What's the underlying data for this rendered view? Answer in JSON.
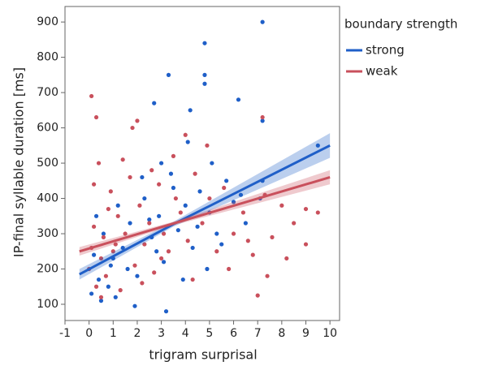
{
  "chart_data": {
    "type": "scatter",
    "x_label": "trigram surprisal",
    "y_label": "IP-final syllable duration [ms]",
    "legend_title": "boundary strength",
    "legend_position": "outside-right",
    "xlim": [
      -1,
      10.4
    ],
    "ylim": [
      54,
      944
    ],
    "xticks": [
      -1,
      0,
      1,
      2,
      3,
      4,
      5,
      6,
      7,
      8,
      9,
      10
    ],
    "yticks": [
      100,
      200,
      300,
      400,
      500,
      600,
      700,
      800,
      900
    ],
    "series": [
      {
        "name": "strong",
        "color": "#1f5fc8",
        "x": [
          7.2,
          4.8,
          3.3,
          4.8,
          4.8,
          2.7,
          4.2,
          6.2,
          7.2,
          9.5,
          7.2,
          3.2,
          1.9,
          0.1,
          0.2,
          0.4,
          0.6,
          0.9,
          1.1,
          1.4,
          1.7,
          2.0,
          2.3,
          2.6,
          2.9,
          3.1,
          3.4,
          3.7,
          4.0,
          4.3,
          4.6,
          5.0,
          5.3,
          5.7,
          6.0,
          6.5,
          7.1,
          0.3,
          0.8,
          1.2,
          1.6,
          2.2,
          2.8,
          3.5,
          3.9,
          4.5,
          5.1,
          5.5,
          6.3,
          0.5,
          1.0,
          2.5,
          3.0,
          4.1,
          4.9
        ],
        "y": [
          900,
          840,
          750,
          750,
          725,
          670,
          650,
          680,
          620,
          550,
          450,
          80,
          95,
          130,
          240,
          170,
          300,
          210,
          120,
          260,
          330,
          180,
          400,
          290,
          350,
          220,
          470,
          310,
          380,
          260,
          420,
          360,
          300,
          450,
          390,
          330,
          400,
          350,
          150,
          380,
          200,
          460,
          250,
          430,
          170,
          320,
          500,
          270,
          410,
          110,
          230,
          340,
          500,
          560,
          200
        ]
      },
      {
        "name": "weak",
        "color": "#c9505c",
        "x": [
          0.1,
          0.3,
          7.2,
          2.0,
          1.8,
          9.0,
          9.0,
          9.5,
          7.0,
          4.0,
          0.0,
          0.1,
          0.2,
          0.3,
          0.4,
          0.5,
          0.6,
          0.7,
          0.9,
          1.0,
          1.2,
          1.3,
          1.5,
          1.7,
          1.9,
          2.1,
          2.3,
          2.5,
          2.7,
          2.9,
          3.1,
          3.3,
          3.5,
          3.8,
          4.1,
          4.4,
          4.7,
          5.0,
          5.3,
          5.6,
          6.0,
          6.4,
          6.8,
          7.3,
          7.6,
          8.0,
          8.5,
          0.2,
          0.5,
          0.8,
          1.1,
          1.4,
          2.2,
          2.6,
          3.0,
          3.6,
          4.3,
          4.9,
          5.8,
          6.6,
          7.4,
          8.2
        ],
        "y": [
          690,
          630,
          630,
          620,
          600,
          270,
          370,
          360,
          125,
          580,
          200,
          260,
          320,
          150,
          500,
          230,
          290,
          180,
          420,
          250,
          350,
          140,
          300,
          460,
          210,
          380,
          270,
          330,
          190,
          440,
          300,
          250,
          520,
          360,
          280,
          470,
          330,
          400,
          250,
          430,
          300,
          360,
          240,
          410,
          290,
          380,
          330,
          440,
          120,
          370,
          270,
          510,
          160,
          480,
          230,
          400,
          170,
          550,
          200,
          280,
          180,
          230
        ]
      }
    ],
    "fits": [
      {
        "x": [
          -0.4,
          3.5,
          10
        ],
        "y": [
          185,
          327,
          550
        ],
        "ci_lower": [
          170,
          320,
          515
        ],
        "ci_upper": [
          200,
          334,
          585
        ]
      },
      {
        "x": [
          -0.4,
          3.5,
          10
        ],
        "y": [
          250,
          329,
          460
        ],
        "ci_lower": [
          238,
          324,
          440
        ],
        "ci_upper": [
          262,
          334,
          480
        ]
      }
    ]
  }
}
